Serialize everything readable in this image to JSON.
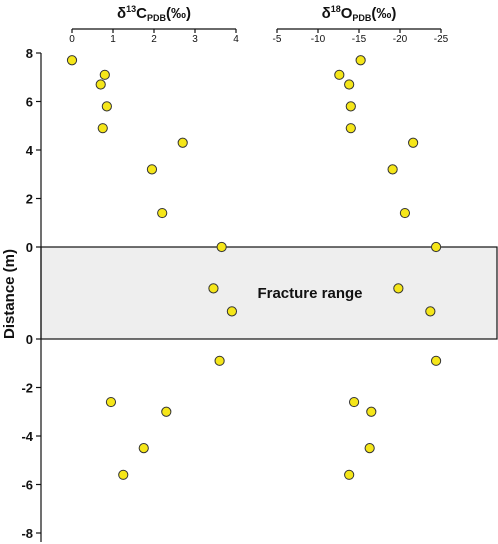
{
  "chart_data": {
    "type": "scatter",
    "ylabel": "Distance (m)",
    "y_ticks_upper": [
      "8",
      "6",
      "4",
      "2",
      "0"
    ],
    "y_ticks_lower": [
      "0",
      "-2",
      "-4",
      "-6",
      "-8"
    ],
    "fracture_label": "Fracture range",
    "colors": {
      "marker_fill": "#f5e619",
      "marker_stroke": "#333333",
      "band_fill": "#eeeeee"
    },
    "panels": [
      {
        "title": {
          "prefix": "δ",
          "sup": "13",
          "main": "C",
          "sub": "PDB",
          "suffix": "(‰)"
        },
        "xlim": [
          0,
          4
        ],
        "ticks": [
          "0",
          "1",
          "2",
          "3",
          "4"
        ],
        "tick_values": [
          0,
          1,
          2,
          3,
          4
        ],
        "points_upper": [
          {
            "x": 0.0,
            "y": 7.7
          },
          {
            "x": 0.8,
            "y": 7.1
          },
          {
            "x": 0.7,
            "y": 6.7
          },
          {
            "x": 0.85,
            "y": 5.8
          },
          {
            "x": 0.75,
            "y": 4.9
          },
          {
            "x": 2.7,
            "y": 4.3
          },
          {
            "x": 1.95,
            "y": 3.2
          },
          {
            "x": 2.2,
            "y": 1.4
          },
          {
            "x": 3.65,
            "y": 0.0
          }
        ],
        "points_band": [
          {
            "x": 3.45,
            "fraction": 0.45
          },
          {
            "x": 3.9,
            "fraction": 0.7
          }
        ],
        "points_lower": [
          {
            "x": 3.6,
            "y": -0.9
          },
          {
            "x": 0.95,
            "y": -2.6
          },
          {
            "x": 2.3,
            "y": -3.0
          },
          {
            "x": 1.75,
            "y": -4.5
          },
          {
            "x": 1.25,
            "y": -5.6
          }
        ]
      },
      {
        "title": {
          "prefix": "δ",
          "sup": "18",
          "main": "O",
          "sub": "PDB",
          "suffix": "(‰)"
        },
        "xlim": [
          -5,
          -25
        ],
        "ticks": [
          "-5",
          "-10",
          "-15",
          "-20",
          "-25"
        ],
        "tick_values": [
          -5,
          -10,
          -15,
          -20,
          -25
        ],
        "points_upper": [
          {
            "x": -15.2,
            "y": 7.7
          },
          {
            "x": -12.6,
            "y": 7.1
          },
          {
            "x": -13.8,
            "y": 6.7
          },
          {
            "x": -14.0,
            "y": 5.8
          },
          {
            "x": -14.0,
            "y": 4.9
          },
          {
            "x": -21.6,
            "y": 4.3
          },
          {
            "x": -19.1,
            "y": 3.2
          },
          {
            "x": -20.6,
            "y": 1.4
          },
          {
            "x": -24.4,
            "y": 0.0
          }
        ],
        "points_band": [
          {
            "x": -19.8,
            "fraction": 0.45
          },
          {
            "x": -23.7,
            "fraction": 0.7
          }
        ],
        "points_lower": [
          {
            "x": -24.4,
            "y": -0.9
          },
          {
            "x": -14.4,
            "y": -2.6
          },
          {
            "x": -16.5,
            "y": -3.0
          },
          {
            "x": -16.3,
            "y": -4.5
          },
          {
            "x": -13.8,
            "y": -5.6
          }
        ]
      }
    ]
  }
}
